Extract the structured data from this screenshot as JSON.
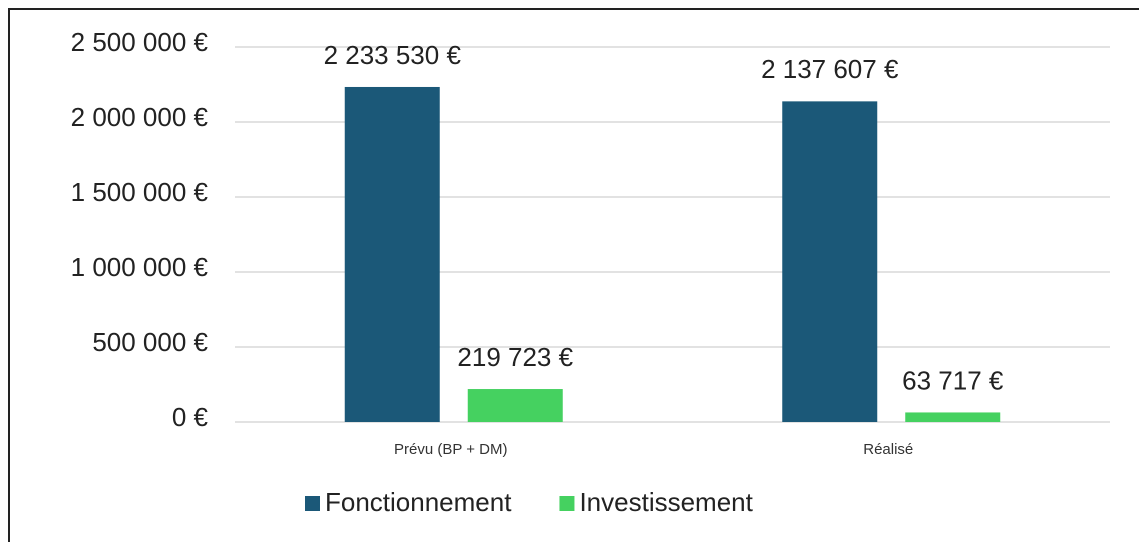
{
  "chart_data": {
    "type": "bar",
    "categories": [
      "Prévu (BP + DM)",
      "Réalisé"
    ],
    "series": [
      {
        "name": "Fonctionnement",
        "color": "#1b5878",
        "values": [
          2233530,
          2137607
        ],
        "value_labels": [
          "2 233 530 €",
          "2 137 607 €"
        ]
      },
      {
        "name": "Investissement",
        "color": "#45d160",
        "values": [
          219723,
          63717
        ],
        "value_labels": [
          "219 723 €",
          "63 717 €"
        ]
      }
    ],
    "ylim": [
      0,
      2500000
    ],
    "yticks": [
      {
        "value": 0,
        "label": "0 €"
      },
      {
        "value": 500000,
        "label": "500 000 €"
      },
      {
        "value": 1000000,
        "label": "1 000 000 €"
      },
      {
        "value": 1500000,
        "label": "1 500 000 €"
      },
      {
        "value": 2000000,
        "label": "2 000 000 €"
      },
      {
        "value": 2500000,
        "label": "2 500 000 €"
      }
    ],
    "grid": true,
    "legend": "bottom"
  }
}
